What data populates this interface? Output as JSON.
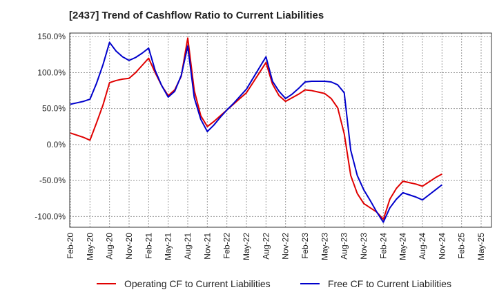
{
  "title": "[2437]  Trend of Cashflow Ratio to Current Liabilities",
  "chart_data": {
    "type": "line",
    "title": "[2437]  Trend of Cashflow Ratio to Current Liabilities",
    "xlabel": "",
    "ylabel": "",
    "ylim": [
      -115,
      155
    ],
    "yticks": [
      150,
      100,
      50,
      0,
      -50,
      -100
    ],
    "ytick_labels": [
      "150.0%",
      "100.0%",
      "50.0%",
      "0.0%",
      "-50.0%",
      "-100.0%"
    ],
    "x_ticks": [
      "Feb-20",
      "May-20",
      "Aug-20",
      "Nov-20",
      "Feb-21",
      "May-21",
      "Aug-21",
      "Nov-21",
      "Feb-22",
      "May-22",
      "Aug-22",
      "Nov-22",
      "Feb-23",
      "May-23",
      "Aug-23",
      "Nov-23",
      "Feb-24",
      "May-24",
      "Aug-24",
      "Nov-24",
      "Feb-25",
      "May-25"
    ],
    "grid": true,
    "legend_position": "bottom",
    "x": [
      "Feb-20",
      "Mar-20",
      "Apr-20",
      "May-20",
      "Jun-20",
      "Jul-20",
      "Aug-20",
      "Sep-20",
      "Oct-20",
      "Nov-20",
      "Dec-20",
      "Jan-21",
      "Feb-21",
      "Mar-21",
      "Apr-21",
      "May-21",
      "Jun-21",
      "Jul-21",
      "Aug-21",
      "Sep-21",
      "Oct-21",
      "Nov-21",
      "Dec-21",
      "Jan-22",
      "Feb-22",
      "Mar-22",
      "Apr-22",
      "May-22",
      "Jun-22",
      "Jul-22",
      "Aug-22",
      "Sep-22",
      "Oct-22",
      "Nov-22",
      "Dec-22",
      "Jan-23",
      "Feb-23",
      "Mar-23",
      "Apr-23",
      "May-23",
      "Jun-23",
      "Jul-23",
      "Aug-23",
      "Sep-23",
      "Oct-23",
      "Nov-23",
      "Dec-23",
      "Jan-24",
      "Feb-24",
      "Mar-24",
      "Apr-24",
      "May-24",
      "Jun-24",
      "Jul-24",
      "Aug-24",
      "Sep-24",
      "Oct-24",
      "Nov-24"
    ],
    "series": [
      {
        "name": "Operating CF to Current Liabilities",
        "color": "#e00000",
        "values": [
          16,
          13,
          10,
          6,
          30,
          55,
          86,
          89,
          91,
          92,
          100,
          110,
          120,
          100,
          82,
          68,
          76,
          95,
          148,
          75,
          40,
          25,
          32,
          40,
          48,
          56,
          64,
          72,
          86,
          100,
          114,
          84,
          68,
          60,
          65,
          70,
          76,
          75,
          73,
          71,
          64,
          51,
          15,
          -43,
          -68,
          -82,
          -88,
          -94,
          -104,
          -76,
          -61,
          -51,
          -53,
          -55,
          -58,
          -52,
          -46,
          -41
        ],
        "mask": [
          true,
          false,
          false,
          true,
          false,
          false,
          true,
          false,
          false,
          true,
          false,
          false,
          true,
          false,
          false,
          true,
          false,
          false,
          true,
          false,
          false,
          true,
          false,
          false,
          true,
          false,
          false,
          true,
          false,
          false,
          true,
          false,
          false,
          true,
          false,
          false,
          true,
          false,
          false,
          true,
          false,
          false,
          true,
          false,
          false,
          true,
          false,
          false,
          true,
          false,
          false,
          true,
          false,
          false,
          true,
          false,
          false,
          true
        ]
      },
      {
        "name": "Free CF to Current Liabilities",
        "color": "#0000cc",
        "values": [
          56,
          58,
          60,
          63,
          85,
          111,
          142,
          130,
          122,
          117,
          121,
          127,
          134,
          103,
          82,
          66,
          74,
          96,
          137,
          65,
          35,
          18,
          27,
          38,
          48,
          57,
          67,
          77,
          92,
          107,
          122,
          88,
          74,
          64,
          70,
          78,
          87,
          88,
          88,
          88,
          87,
          83,
          72,
          -8,
          -43,
          -63,
          -78,
          -94,
          -108,
          -88,
          -76,
          -67,
          -70,
          -73,
          -77,
          -70,
          -63,
          -56
        ],
        "mask": [
          true,
          false,
          false,
          true,
          false,
          false,
          true,
          false,
          false,
          true,
          false,
          false,
          true,
          false,
          false,
          true,
          false,
          false,
          true,
          false,
          false,
          true,
          false,
          false,
          true,
          false,
          false,
          true,
          false,
          false,
          true,
          false,
          false,
          true,
          false,
          false,
          true,
          false,
          false,
          true,
          false,
          false,
          true,
          false,
          false,
          true,
          false,
          false,
          true,
          false,
          false,
          true,
          false,
          false,
          true,
          false,
          false,
          true
        ]
      }
    ]
  },
  "legend": {
    "items": [
      {
        "label": "Operating CF to Current Liabilities",
        "color": "#e00000"
      },
      {
        "label": "Free CF to Current Liabilities",
        "color": "#0000cc"
      }
    ]
  }
}
